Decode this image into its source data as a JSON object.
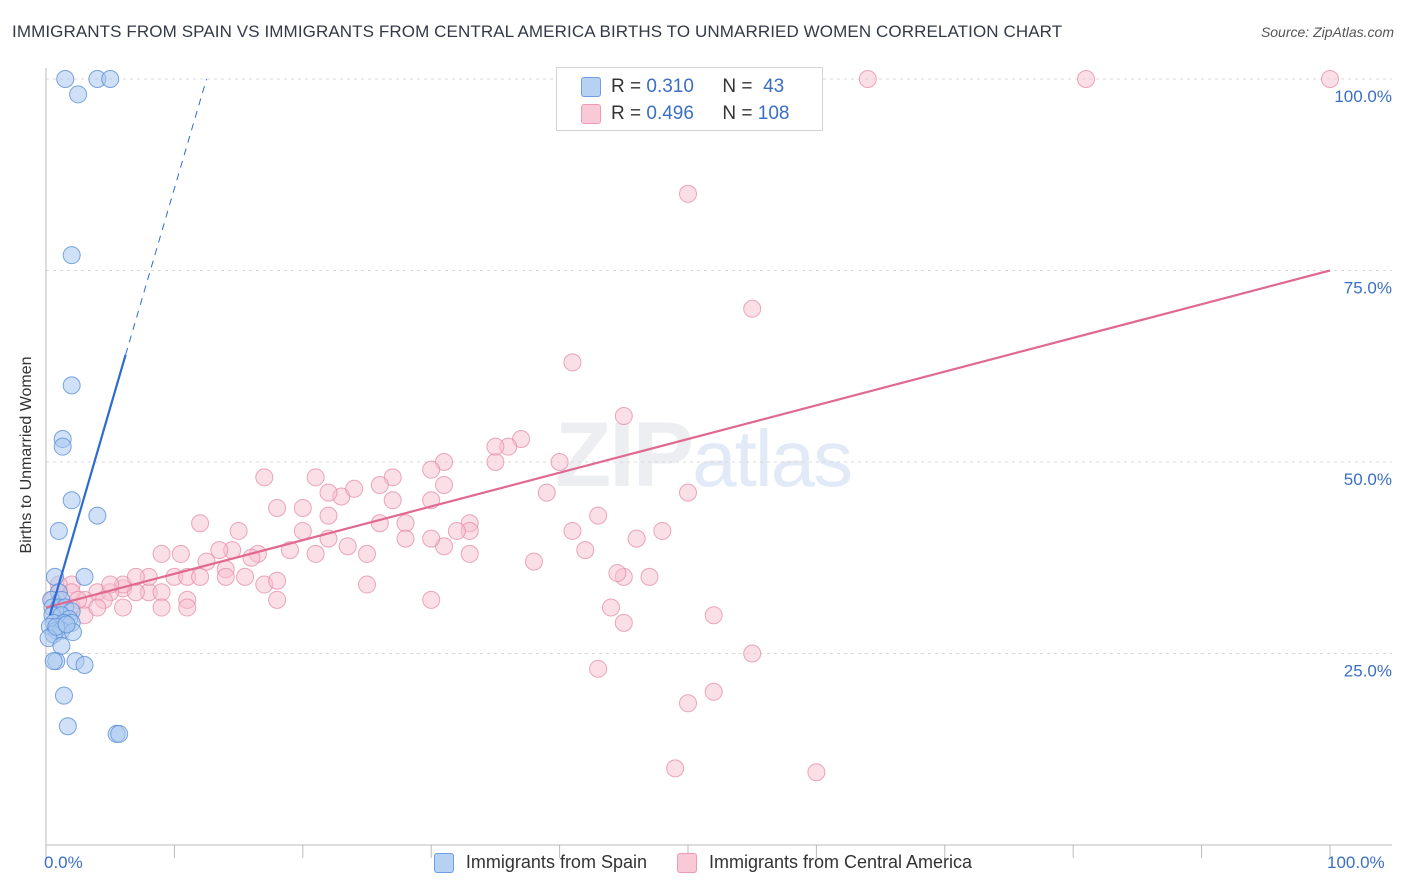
{
  "title": "IMMIGRANTS FROM SPAIN VS IMMIGRANTS FROM CENTRAL AMERICA BIRTHS TO UNMARRIED WOMEN CORRELATION CHART",
  "source": "Source: ZipAtlas.com",
  "watermark": {
    "zip": "ZIP",
    "atlas": "atlas"
  },
  "legend": {
    "r_label": "R =",
    "n_label": "N =",
    "rows": [
      {
        "r": "0.310",
        "n": "43"
      },
      {
        "r": "0.496",
        "n": "108"
      }
    ]
  },
  "colors": {
    "spain_fill": "#a9c8f0",
    "spain_stroke": "#5b8fd6",
    "spain_line": "#2e6bd1",
    "ca_fill": "#f6bfd0",
    "ca_stroke": "#e68aa8",
    "ca_line": "#e06990",
    "grid": "#d9d9d9",
    "axis_text": "#3a6fc4"
  },
  "chart_data": {
    "type": "scatter",
    "title": "IMMIGRANTS FROM SPAIN VS IMMIGRANTS FROM CENTRAL AMERICA BIRTHS TO UNMARRIED WOMEN CORRELATION CHART",
    "xlabel": "",
    "ylabel": "Births to Unmarried Women",
    "xlim": [
      0,
      100
    ],
    "ylim": [
      0,
      100
    ],
    "x_tick_labels": {
      "min": "0.0%",
      "max": "100.0%"
    },
    "y_ticks": [
      {
        "value": 25,
        "label": "25.0%"
      },
      {
        "value": 50,
        "label": "50.0%"
      },
      {
        "value": 75,
        "label": "75.0%"
      },
      {
        "value": 100,
        "label": "100.0%"
      }
    ],
    "series": [
      {
        "name": "Immigrants from Spain",
        "r": 0.31,
        "n": 43,
        "trend": {
          "x0": 0.3,
          "y0": 30,
          "x1": 6.2,
          "y1": 64,
          "dash_x1": 12.5,
          "dash_y1": 100
        },
        "points": [
          [
            1.5,
            100
          ],
          [
            4,
            100
          ],
          [
            5,
            100
          ],
          [
            2.5,
            98
          ],
          [
            2,
            77
          ],
          [
            2,
            60
          ],
          [
            1.3,
            53
          ],
          [
            1.3,
            52
          ],
          [
            2,
            45
          ],
          [
            4,
            43
          ],
          [
            1,
            41
          ],
          [
            0.7,
            35
          ],
          [
            3,
            35
          ],
          [
            1,
            33
          ],
          [
            0.4,
            32
          ],
          [
            1.2,
            32
          ],
          [
            0.5,
            31
          ],
          [
            1,
            31
          ],
          [
            1.5,
            31
          ],
          [
            2,
            30.5
          ],
          [
            0.5,
            30
          ],
          [
            1.2,
            30
          ],
          [
            1.8,
            29.5
          ],
          [
            0.6,
            29
          ],
          [
            1.4,
            29
          ],
          [
            2,
            29
          ],
          [
            0.3,
            28.5
          ],
          [
            0.8,
            28
          ],
          [
            1.2,
            28
          ],
          [
            2.1,
            27.8
          ],
          [
            0.6,
            27.5
          ],
          [
            0.2,
            27
          ],
          [
            1.2,
            26
          ],
          [
            0.8,
            24
          ],
          [
            0.6,
            24
          ],
          [
            2.3,
            24
          ],
          [
            3,
            23.5
          ],
          [
            1.4,
            19.5
          ],
          [
            1.7,
            15.5
          ],
          [
            5.5,
            14.5
          ],
          [
            5.7,
            14.5
          ],
          [
            0.8,
            28.5
          ],
          [
            1.6,
            28.8
          ]
        ]
      },
      {
        "name": "Immigrants from Central America",
        "r": 0.496,
        "n": 108,
        "trend": {
          "x0": 0,
          "y0": 31,
          "x1": 100,
          "y1": 75
        },
        "points": [
          [
            64,
            100
          ],
          [
            81,
            100
          ],
          [
            100,
            100
          ],
          [
            50,
            85
          ],
          [
            55,
            70
          ],
          [
            41,
            63
          ],
          [
            45,
            56
          ],
          [
            37,
            53
          ],
          [
            36,
            52
          ],
          [
            35,
            50
          ],
          [
            35,
            52
          ],
          [
            40,
            50
          ],
          [
            31,
            50
          ],
          [
            30,
            49
          ],
          [
            31,
            47
          ],
          [
            27,
            48
          ],
          [
            26,
            47
          ],
          [
            30,
            45
          ],
          [
            21,
            48
          ],
          [
            17,
            48
          ],
          [
            23,
            45.5
          ],
          [
            27,
            45
          ],
          [
            22,
            43
          ],
          [
            22,
            46
          ],
          [
            24,
            46.5
          ],
          [
            20,
            44
          ],
          [
            18,
            44
          ],
          [
            26,
            42
          ],
          [
            28,
            42
          ],
          [
            33,
            42
          ],
          [
            33,
            41
          ],
          [
            32,
            41
          ],
          [
            28,
            40
          ],
          [
            31,
            39
          ],
          [
            25,
            38
          ],
          [
            33,
            38
          ],
          [
            21,
            38
          ],
          [
            20,
            41
          ],
          [
            22,
            40
          ],
          [
            30,
            40
          ],
          [
            23.5,
            39
          ],
          [
            19,
            38.5
          ],
          [
            15,
            41
          ],
          [
            14.5,
            38.5
          ],
          [
            12,
            42
          ],
          [
            10.5,
            38
          ],
          [
            12.5,
            37
          ],
          [
            14,
            36
          ],
          [
            13.5,
            38.5
          ],
          [
            15.5,
            35
          ],
          [
            16.5,
            38
          ],
          [
            17,
            34
          ],
          [
            10,
            35
          ],
          [
            8,
            33
          ],
          [
            11,
            35
          ],
          [
            11,
            32
          ],
          [
            12,
            35
          ],
          [
            9,
            33
          ],
          [
            6,
            33.5
          ],
          [
            7,
            33
          ],
          [
            6,
            34
          ],
          [
            8,
            35
          ],
          [
            9,
            38
          ],
          [
            4,
            33
          ],
          [
            5,
            33
          ],
          [
            2,
            34
          ],
          [
            3,
            32
          ],
          [
            1,
            33
          ],
          [
            0.5,
            32
          ],
          [
            2,
            31
          ],
          [
            1,
            31
          ],
          [
            4.5,
            32
          ],
          [
            6,
            31
          ],
          [
            9,
            31
          ],
          [
            11,
            31
          ],
          [
            18,
            32
          ],
          [
            7,
            35
          ],
          [
            14,
            35
          ],
          [
            16,
            37.5
          ],
          [
            18,
            34.5
          ],
          [
            25,
            34
          ],
          [
            38,
            37
          ],
          [
            45,
            35
          ],
          [
            44.5,
            35.5
          ],
          [
            30,
            32
          ],
          [
            52,
            30
          ],
          [
            45,
            29
          ],
          [
            43,
            23
          ],
          [
            55,
            25
          ],
          [
            52,
            20
          ],
          [
            50,
            18.5
          ],
          [
            49,
            10
          ],
          [
            60,
            9.5
          ],
          [
            44,
            31
          ],
          [
            1,
            34
          ],
          [
            2,
            33
          ],
          [
            3,
            30
          ],
          [
            4,
            31
          ],
          [
            5,
            34
          ],
          [
            2.5,
            32
          ],
          [
            42,
            38.5
          ],
          [
            46,
            40
          ],
          [
            47,
            35
          ],
          [
            48,
            41
          ],
          [
            41,
            41
          ],
          [
            43,
            43
          ],
          [
            39,
            46
          ],
          [
            50,
            46
          ]
        ]
      }
    ]
  },
  "axis": {
    "y_title": "Births to Unmarried Women",
    "x_min_label": "0.0%",
    "x_max_label": "100.0%"
  },
  "bottom_legend": [
    {
      "label": "Immigrants from Spain"
    },
    {
      "label": "Immigrants from Central America"
    }
  ]
}
